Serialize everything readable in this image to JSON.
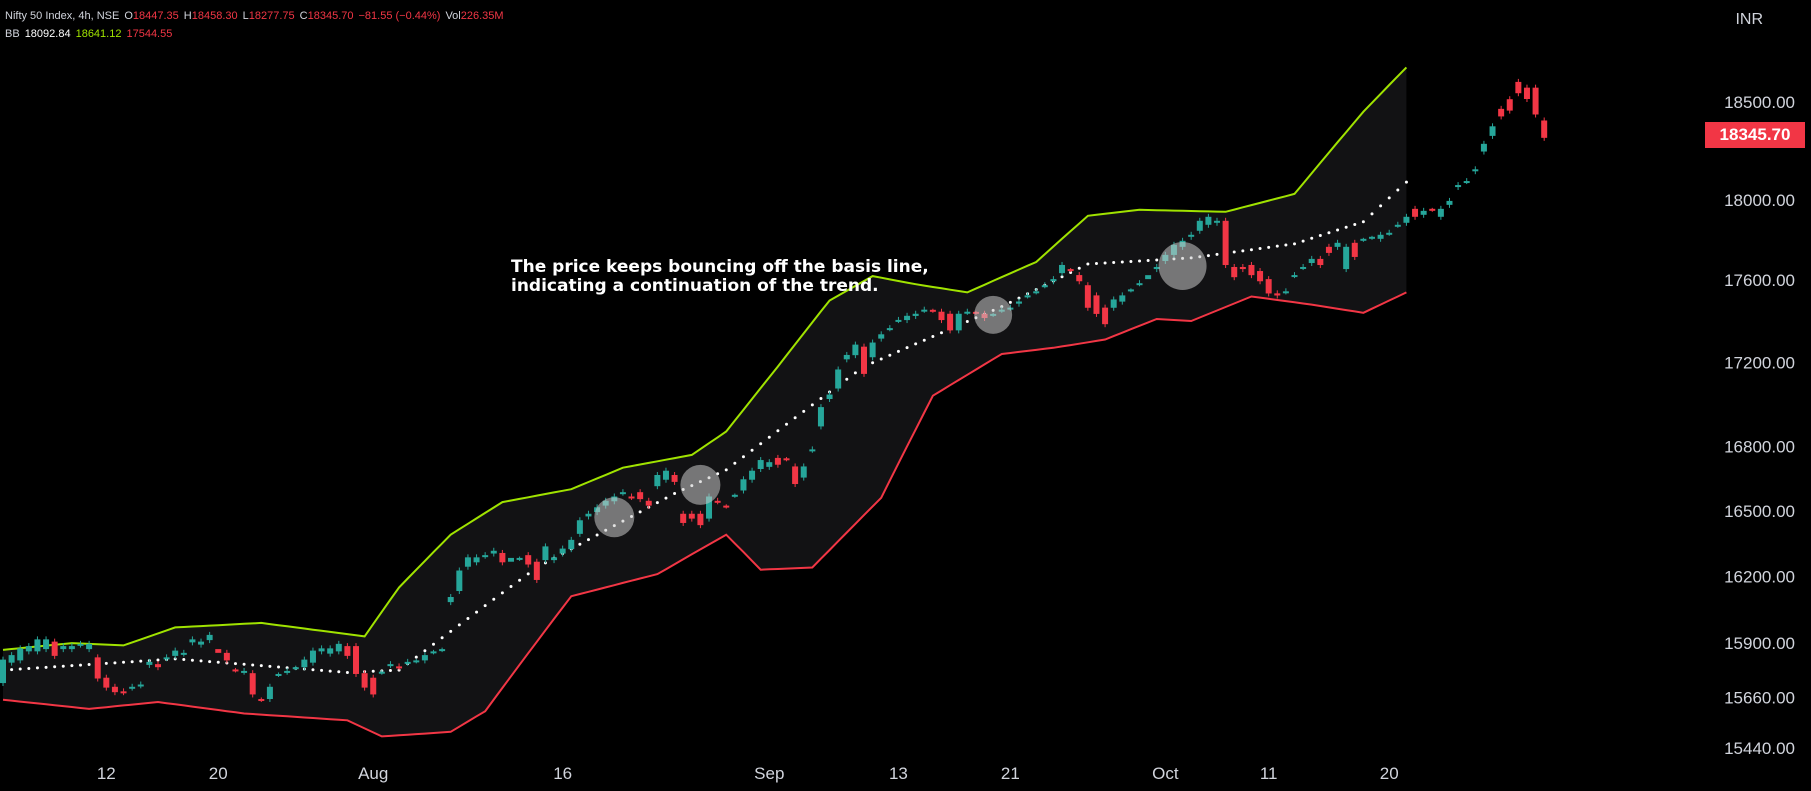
{
  "header": {
    "symbol": "Nifty 50 Index, 4h, NSE",
    "open_label": "O",
    "open": "18447.35",
    "high_label": "H",
    "high": "18458.30",
    "low_label": "L",
    "low": "18277.75",
    "close_label": "C",
    "close": "18345.70",
    "change": "−81.55 (−0.44%)",
    "vol_label": "Vol",
    "vol": "226.35M"
  },
  "indicator": {
    "name": "BB",
    "basis": "18092.84",
    "upper": "18641.12",
    "lower": "17544.55"
  },
  "currency": "INR",
  "last_price": "18345.70",
  "annotation": {
    "line1": "The price keeps bouncing off the basis line,",
    "line2": "indicating a continuation of the trend."
  },
  "colors": {
    "up": "#26a69a",
    "down": "#f23645",
    "upper_band": "#a0e300",
    "lower_band": "#f23645",
    "basis": "#ffffff",
    "band_fill": "#121214",
    "background": "#000000"
  },
  "chart_data": {
    "type": "candlestick",
    "y_axis": {
      "ticks": [
        15440,
        15660,
        15900,
        16200,
        16500,
        16800,
        17200,
        17600,
        18000,
        18500
      ],
      "tick_labels": [
        "15440.00",
        "15660.00",
        "15900.00",
        "16200.00",
        "16500.00",
        "16800.00",
        "17200.00",
        "17600.00",
        "18000.00",
        "18500.00"
      ],
      "scale": "log"
    },
    "x_axis": {
      "tick_labels": [
        "12",
        "20",
        "Aug",
        "16",
        "Sep",
        "13",
        "21",
        "Oct",
        "11",
        "20"
      ],
      "tick_index": [
        12,
        25,
        43,
        65,
        89,
        104,
        117,
        135,
        147,
        161
      ]
    },
    "series": [
      {
        "name": "upper",
        "points": [
          [
            0,
            15870
          ],
          [
            8,
            15900
          ],
          [
            14,
            15890
          ],
          [
            20,
            15970
          ],
          [
            30,
            15990
          ],
          [
            42,
            15930
          ],
          [
            46,
            16150
          ],
          [
            52,
            16390
          ],
          [
            58,
            16540
          ],
          [
            66,
            16600
          ],
          [
            72,
            16700
          ],
          [
            80,
            16760
          ],
          [
            84,
            16870
          ],
          [
            90,
            17180
          ],
          [
            96,
            17500
          ],
          [
            101,
            17620
          ],
          [
            106,
            17580
          ],
          [
            112,
            17540
          ],
          [
            120,
            17690
          ],
          [
            126,
            17920
          ],
          [
            132,
            17950
          ],
          [
            142,
            17940
          ],
          [
            150,
            18030
          ],
          [
            158,
            18450
          ],
          [
            163,
            18680
          ]
        ]
      },
      {
        "name": "basis",
        "points": [
          [
            0,
            15780
          ],
          [
            20,
            15830
          ],
          [
            30,
            15800
          ],
          [
            40,
            15770
          ],
          [
            46,
            15780
          ],
          [
            62,
            16240
          ],
          [
            78,
            16580
          ],
          [
            84,
            16690
          ],
          [
            100,
            17180
          ],
          [
            116,
            17470
          ],
          [
            126,
            17680
          ],
          [
            138,
            17710
          ],
          [
            150,
            17780
          ],
          [
            158,
            17890
          ],
          [
            163,
            18090
          ]
        ]
      },
      {
        "name": "lower",
        "points": [
          [
            0,
            15650
          ],
          [
            10,
            15610
          ],
          [
            18,
            15640
          ],
          [
            28,
            15590
          ],
          [
            40,
            15560
          ],
          [
            44,
            15490
          ],
          [
            52,
            15510
          ],
          [
            56,
            15600
          ],
          [
            66,
            16110
          ],
          [
            76,
            16210
          ],
          [
            84,
            16390
          ],
          [
            88,
            16230
          ],
          [
            94,
            16240
          ],
          [
            102,
            16560
          ],
          [
            108,
            17040
          ],
          [
            116,
            17240
          ],
          [
            122,
            17270
          ],
          [
            128,
            17310
          ],
          [
            134,
            17410
          ],
          [
            138,
            17400
          ],
          [
            145,
            17520
          ],
          [
            152,
            17480
          ],
          [
            158,
            17440
          ],
          [
            163,
            17540
          ]
        ]
      }
    ],
    "candles": [
      [
        15710,
        15840
      ],
      [
        15800,
        15860
      ],
      [
        15810,
        15890
      ],
      [
        15850,
        15900
      ],
      [
        15850,
        15930
      ],
      [
        15860,
        15930
      ],
      [
        15830,
        15920
      ],
      [
        15860,
        15900
      ],
      [
        15860,
        15900
      ],
      [
        15880,
        15910
      ],
      [
        15860,
        15910
      ],
      [
        15730,
        15850
      ],
      [
        15690,
        15760
      ],
      [
        15670,
        15720
      ],
      [
        15670,
        15700
      ],
      [
        15690,
        15720
      ],
      [
        15700,
        15730
      ],
      [
        15790,
        15830
      ],
      [
        15780,
        15820
      ],
      [
        15820,
        15850
      ],
      [
        15830,
        15880
      ],
      [
        15840,
        15870
      ],
      [
        15890,
        15930
      ],
      [
        15880,
        15920
      ],
      [
        15900,
        15950
      ],
      [
        15860,
        15870
      ],
      [
        15810,
        15870
      ],
      [
        15770,
        15790
      ],
      [
        15760,
        15790
      ],
      [
        15660,
        15780
      ],
      [
        15640,
        15660
      ],
      [
        15640,
        15720
      ],
      [
        15750,
        15770
      ],
      [
        15760,
        15790
      ],
      [
        15780,
        15800
      ],
      [
        15780,
        15840
      ],
      [
        15800,
        15880
      ],
      [
        15850,
        15890
      ],
      [
        15840,
        15890
      ],
      [
        15850,
        15910
      ],
      [
        15830,
        15900
      ],
      [
        15750,
        15900
      ],
      [
        15690,
        15780
      ],
      [
        15660,
        15760
      ],
      [
        15760,
        15780
      ],
      [
        15790,
        15820
      ],
      [
        15780,
        15810
      ],
      [
        15800,
        15830
      ],
      [
        15810,
        15830
      ],
      [
        15810,
        15860
      ],
      [
        15850,
        15870
      ],
      [
        15860,
        15880
      ],
      [
        16070,
        16120
      ],
      [
        16120,
        16240
      ],
      [
        16230,
        16300
      ],
      [
        16250,
        16300
      ],
      [
        16280,
        16310
      ],
      [
        16290,
        16330
      ],
      [
        16250,
        16320
      ],
      [
        16270,
        16280
      ],
      [
        16270,
        16290
      ],
      [
        16240,
        16310
      ],
      [
        16170,
        16280
      ],
      [
        16260,
        16350
      ],
      [
        16260,
        16300
      ],
      [
        16290,
        16340
      ],
      [
        16310,
        16380
      ],
      [
        16380,
        16470
      ],
      [
        16460,
        16500
      ],
      [
        16480,
        16530
      ],
      [
        16510,
        16560
      ],
      [
        16530,
        16580
      ],
      [
        16570,
        16600
      ],
      [
        16550,
        16580
      ],
      [
        16540,
        16600
      ],
      [
        16510,
        16560
      ],
      [
        16600,
        16680
      ],
      [
        16630,
        16700
      ],
      [
        16620,
        16680
      ],
      [
        16430,
        16500
      ],
      [
        16450,
        16500
      ],
      [
        16420,
        16500
      ],
      [
        16450,
        16580
      ],
      [
        16530,
        16560
      ],
      [
        16510,
        16530
      ],
      [
        16560,
        16580
      ],
      [
        16580,
        16660
      ],
      [
        16630,
        16700
      ],
      [
        16680,
        16750
      ],
      [
        16690,
        16740
      ],
      [
        16700,
        16760
      ],
      [
        16730,
        16750
      ],
      [
        16610,
        16720
      ],
      [
        16640,
        16720
      ],
      [
        16770,
        16800
      ],
      [
        16880,
        17000
      ],
      [
        17010,
        17060
      ],
      [
        17060,
        17180
      ],
      [
        17200,
        17250
      ],
      [
        17220,
        17300
      ],
      [
        17130,
        17290
      ],
      [
        17210,
        17310
      ],
      [
        17300,
        17350
      ],
      [
        17350,
        17380
      ],
      [
        17390,
        17420
      ],
      [
        17390,
        17440
      ],
      [
        17410,
        17450
      ],
      [
        17440,
        17470
      ],
      [
        17440,
        17460
      ],
      [
        17390,
        17460
      ],
      [
        17340,
        17450
      ],
      [
        17340,
        17450
      ],
      [
        17430,
        17460
      ],
      [
        17430,
        17450
      ],
      [
        17400,
        17450
      ],
      [
        17420,
        17440
      ],
      [
        17440,
        17470
      ],
      [
        17450,
        17480
      ],
      [
        17470,
        17510
      ],
      [
        17510,
        17540
      ],
      [
        17530,
        17560
      ],
      [
        17560,
        17590
      ],
      [
        17580,
        17620
      ],
      [
        17620,
        17690
      ],
      [
        17640,
        17660
      ],
      [
        17580,
        17640
      ],
      [
        17450,
        17590
      ],
      [
        17420,
        17540
      ],
      [
        17370,
        17480
      ],
      [
        17450,
        17520
      ],
      [
        17480,
        17540
      ],
      [
        17540,
        17560
      ],
      [
        17570,
        17600
      ],
      [
        17610,
        17620
      ],
      [
        17640,
        17680
      ],
      [
        17680,
        17740
      ],
      [
        17710,
        17790
      ],
      [
        17750,
        17810
      ],
      [
        17800,
        17840
      ],
      [
        17830,
        17910
      ],
      [
        17860,
        17930
      ],
      [
        17870,
        17910
      ],
      [
        17660,
        17910
      ],
      [
        17600,
        17680
      ],
      [
        17640,
        17680
      ],
      [
        17610,
        17690
      ],
      [
        17580,
        17660
      ],
      [
        17520,
        17620
      ],
      [
        17510,
        17550
      ],
      [
        17530,
        17560
      ],
      [
        17610,
        17640
      ],
      [
        17650,
        17680
      ],
      [
        17670,
        17720
      ],
      [
        17660,
        17720
      ],
      [
        17720,
        17780
      ],
      [
        17750,
        17800
      ],
      [
        17640,
        17780
      ],
      [
        17700,
        17800
      ],
      [
        17790,
        17810
      ],
      [
        17800,
        17820
      ],
      [
        17790,
        17840
      ],
      [
        17820,
        17850
      ],
      [
        17860,
        17890
      ],
      [
        17870,
        17930
      ],
      [
        17900,
        17970
      ],
      [
        17910,
        17960
      ],
      [
        17940,
        17960
      ],
      [
        17900,
        17970
      ],
      [
        17960,
        18010
      ],
      [
        18050,
        18090
      ],
      [
        18080,
        18110
      ],
      [
        18130,
        18170
      ],
      [
        18230,
        18300
      ],
      [
        18310,
        18390
      ],
      [
        18410,
        18480
      ],
      [
        18440,
        18530
      ],
      [
        18530,
        18620
      ],
      [
        18500,
        18590
      ],
      [
        18420,
        18590
      ],
      [
        18300,
        18420
      ]
    ],
    "candle_dirs": [
      "u",
      "u",
      "u",
      "u",
      "u",
      "u",
      "d",
      "u",
      "u",
      "u",
      "u",
      "d",
      "d",
      "d",
      "d",
      "u",
      "u",
      "u",
      "d",
      "u",
      "u",
      "u",
      "u",
      "u",
      "u",
      "d",
      "d",
      "d",
      "u",
      "d",
      "d",
      "u",
      "u",
      "u",
      "u",
      "u",
      "u",
      "u",
      "u",
      "u",
      "d",
      "d",
      "d",
      "d",
      "u",
      "u",
      "d",
      "u",
      "u",
      "u",
      "u",
      "u",
      "u",
      "u",
      "u",
      "u",
      "u",
      "u",
      "d",
      "u",
      "u",
      "d",
      "d",
      "u",
      "u",
      "u",
      "u",
      "u",
      "u",
      "u",
      "u",
      "u",
      "u",
      "d",
      "d",
      "d",
      "u",
      "u",
      "d",
      "d",
      "d",
      "d",
      "u",
      "d",
      "d",
      "u",
      "u",
      "u",
      "u",
      "u",
      "d",
      "d",
      "d",
      "u",
      "u",
      "u",
      "u",
      "u",
      "u",
      "u",
      "d",
      "u",
      "u",
      "u",
      "u",
      "u",
      "u",
      "u",
      "d",
      "d",
      "d",
      "u",
      "u",
      "d",
      "d",
      "u",
      "u",
      "u",
      "u",
      "u",
      "u",
      "u",
      "u",
      "u",
      "d",
      "d",
      "d",
      "d",
      "d",
      "u",
      "u",
      "u",
      "u",
      "u",
      "u",
      "u",
      "u",
      "u",
      "u",
      "u",
      "u",
      "u",
      "d",
      "d",
      "d",
      "d",
      "d",
      "d",
      "d",
      "u",
      "u",
      "u",
      "u",
      "d",
      "d",
      "u",
      "u",
      "d",
      "u",
      "u",
      "u",
      "u",
      "u",
      "u",
      "d",
      "u",
      "d",
      "u",
      "u",
      "u",
      "u",
      "u",
      "u",
      "u",
      "d",
      "d",
      "d"
    ],
    "current_price": 18345.7
  }
}
